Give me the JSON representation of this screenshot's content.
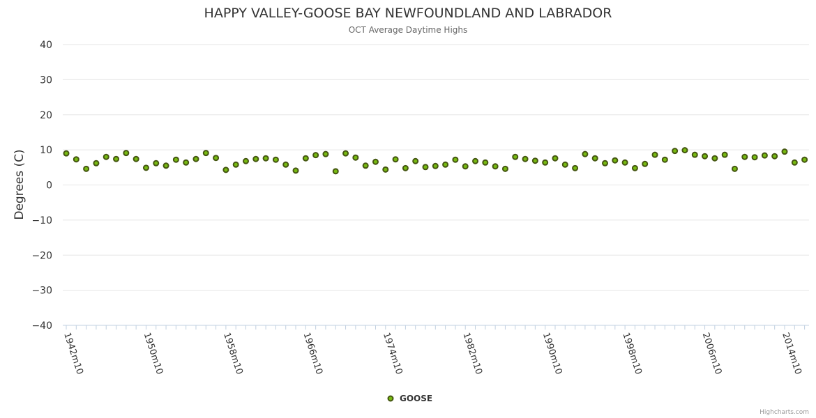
{
  "colors": {
    "marker_fill": "#77bb11",
    "marker_stroke": "#445511",
    "grid": "#e6e6e6",
    "axis": "#c0d0e0"
  },
  "legend": {
    "label": "GOOSE"
  },
  "credits": "Highcharts.com",
  "chart_data": {
    "type": "scatter",
    "title": "HAPPY VALLEY-GOOSE BAY NEWFOUNDLAND AND LABRADOR",
    "subtitle": "OCT Average Daytime Highs",
    "xlabel": "",
    "ylabel": "Degrees (C)",
    "ylim": [
      -40,
      40
    ],
    "yticks": [
      40,
      30,
      20,
      10,
      0,
      -10,
      -20,
      -30,
      -40
    ],
    "grid": true,
    "legend_position": "bottom-center",
    "xtick_labels": [
      "1942m10",
      "1950m10",
      "1958m10",
      "1966m10",
      "1974m10",
      "1982m10",
      "1990m10",
      "1998m10",
      "2006m10",
      "2014m10"
    ],
    "series": [
      {
        "name": "GOOSE",
        "x": [
          1942,
          1943,
          1944,
          1945,
          1946,
          1947,
          1948,
          1949,
          1950,
          1951,
          1952,
          1953,
          1954,
          1955,
          1956,
          1957,
          1958,
          1959,
          1960,
          1961,
          1962,
          1963,
          1964,
          1965,
          1966,
          1967,
          1968,
          1969,
          1970,
          1971,
          1972,
          1973,
          1974,
          1975,
          1976,
          1977,
          1978,
          1979,
          1980,
          1981,
          1982,
          1983,
          1984,
          1985,
          1986,
          1987,
          1988,
          1989,
          1990,
          1991,
          1992,
          1993,
          1994,
          1995,
          1996,
          1997,
          1998,
          1999,
          2000,
          2001,
          2002,
          2003,
          2004,
          2005,
          2006,
          2007,
          2008,
          2009,
          2010,
          2011,
          2012,
          2013,
          2014,
          2015,
          2016
        ],
        "values": [
          9.0,
          7.3,
          4.6,
          6.2,
          8.0,
          7.4,
          9.1,
          7.4,
          4.9,
          6.2,
          5.5,
          7.2,
          6.4,
          7.4,
          9.1,
          7.7,
          4.3,
          5.8,
          6.8,
          7.4,
          7.6,
          7.2,
          5.8,
          4.1,
          7.6,
          8.5,
          8.8,
          3.9,
          9.0,
          7.8,
          5.5,
          6.6,
          4.4,
          7.3,
          4.8,
          6.8,
          5.1,
          5.4,
          5.8,
          7.2,
          5.3,
          6.8,
          6.4,
          5.3,
          4.6,
          8.0,
          7.4,
          6.9,
          6.4,
          7.6,
          5.8,
          4.8,
          8.8,
          7.6,
          6.2,
          7.0,
          6.4,
          4.8,
          6.0,
          8.6,
          7.2,
          9.7,
          9.9,
          8.6,
          8.2,
          7.6,
          8.6,
          4.6,
          8.0,
          7.9,
          8.4,
          8.2,
          9.5,
          6.4,
          7.2
        ]
      }
    ]
  }
}
